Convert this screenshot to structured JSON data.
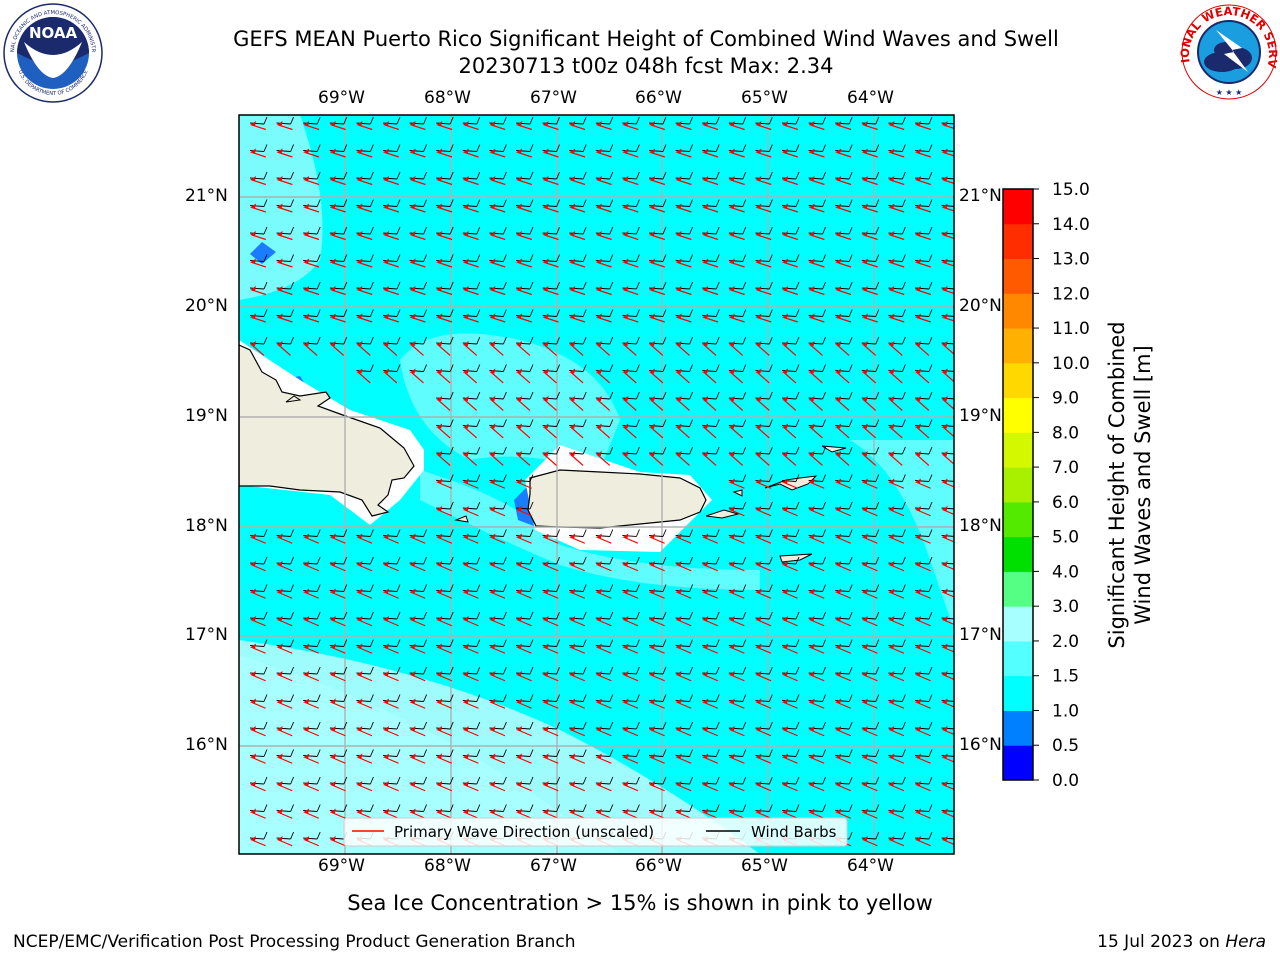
{
  "title_line1": "GEFS MEAN Puerto Rico Significant Height of Combined Wind Waves and Swell",
  "title_line2": "20230713 t00z 048h fcst   Max: 2.34",
  "noaa_logo": {
    "text_center": "NOAA",
    "ring_top": "NATIONAL OCEANIC AND ATMOSPHERIC ADMINISTRATION",
    "ring_bottom": "U.S. DEPARTMENT OF COMMERCE"
  },
  "nws_logo": {
    "ring_text": "NATIONAL WEATHER SERVICE"
  },
  "map": {
    "lon_labels": [
      "69°W",
      "68°W",
      "67°W",
      "66°W",
      "65°W",
      "64°W"
    ],
    "lat_labels": [
      "21°N",
      "20°N",
      "19°N",
      "18°N",
      "17°N",
      "16°N"
    ],
    "ocean_color": "#00ffff",
    "light_color": "#9ffcfc",
    "land_color": "#efedde",
    "wave_arrow_color": "#ff0000",
    "barb_color": "#000000"
  },
  "legend": {
    "items": [
      {
        "label": "Primary Wave Direction (unscaled)",
        "color": "#ff0000"
      },
      {
        "label": "Wind Barbs",
        "color": "#000000"
      }
    ]
  },
  "colorbar": {
    "label_line1": "Significant Height of Combined",
    "label_line2": "Wind Waves and Swell [m]",
    "ticks": [
      "0.0",
      "0.5",
      "1.0",
      "1.5",
      "2.0",
      "3.0",
      "4.0",
      "5.0",
      "6.0",
      "7.0",
      "8.0",
      "9.0",
      "10.0",
      "11.0",
      "12.0",
      "13.0",
      "14.0",
      "15.0"
    ],
    "colors": [
      "#0000ff",
      "#0080ff",
      "#00ffff",
      "#54ffff",
      "#a8ffff",
      "#54ff84",
      "#00e000",
      "#54ea00",
      "#a8f000",
      "#d4f800",
      "#ffff00",
      "#ffd800",
      "#ffb000",
      "#ff8800",
      "#ff5a00",
      "#ff2d00",
      "#ff0000"
    ]
  },
  "sea_ice_note": "Sea Ice Concentration > 15% is shown in pink to yellow",
  "footer_left": "NCEP/EMC/Verification Post Processing Product Generation Branch",
  "footer_right_prefix": "15 Jul 2023 on ",
  "footer_right_host": "Hera"
}
